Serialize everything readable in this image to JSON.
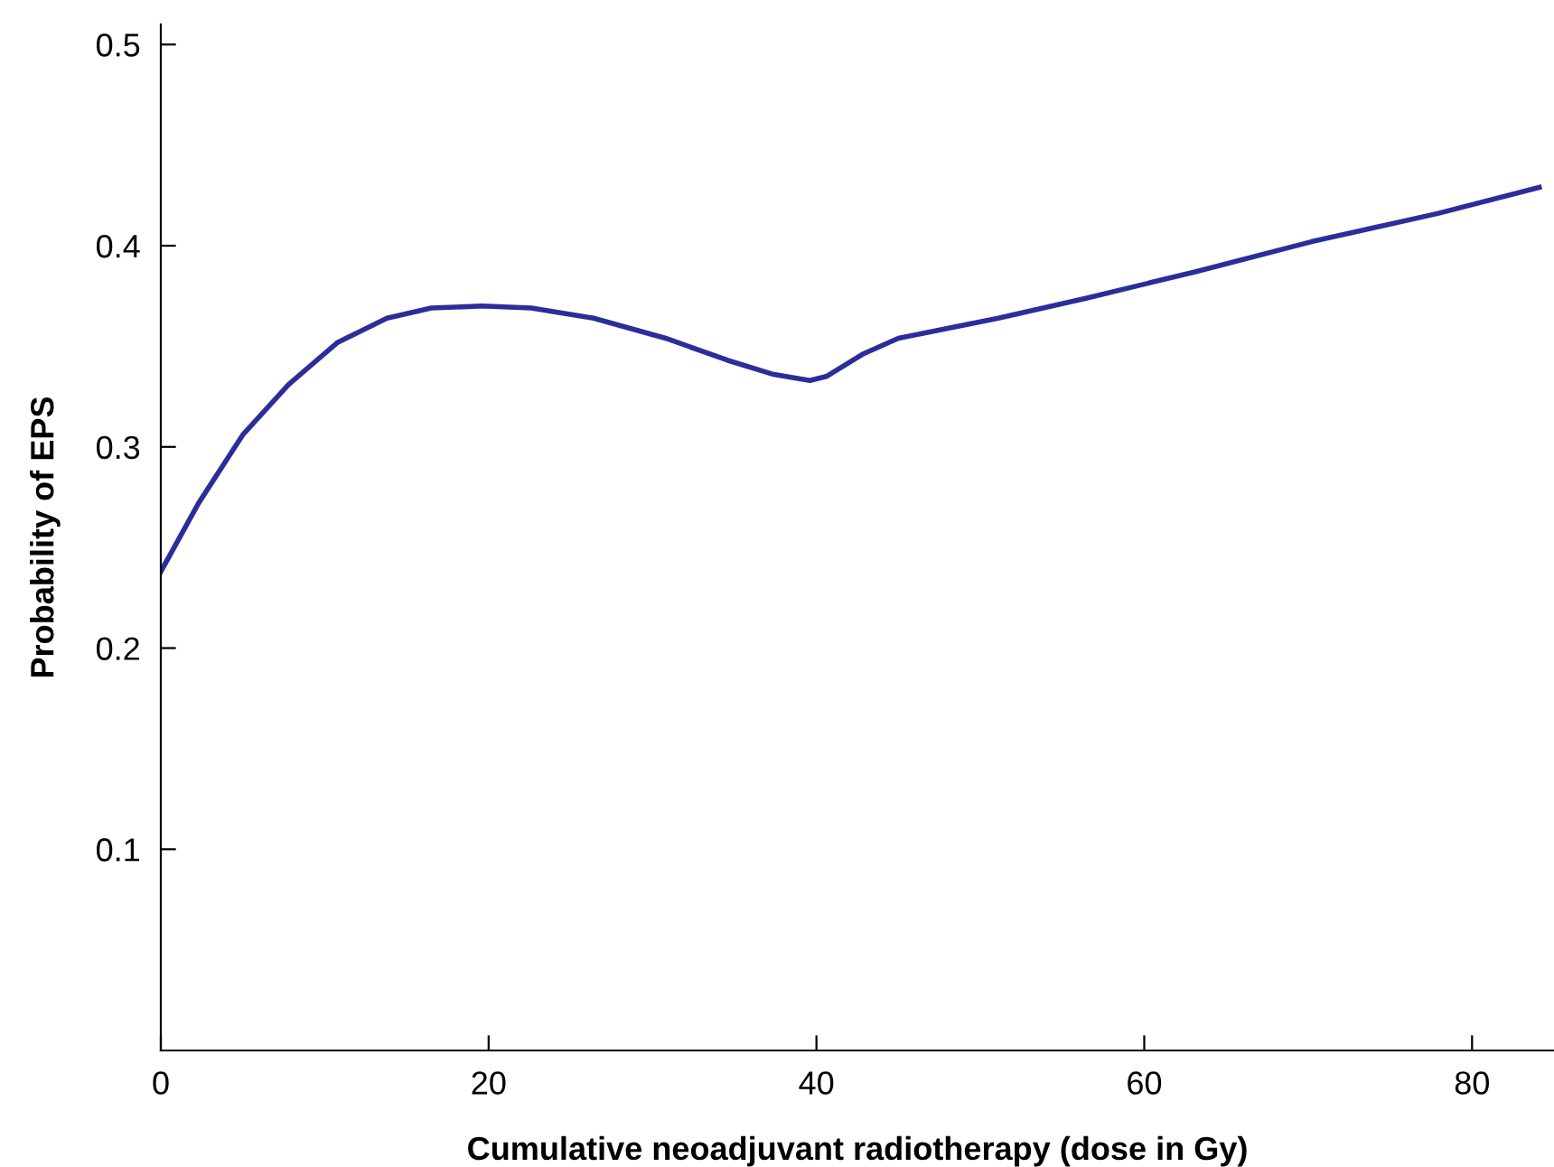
{
  "chart_data": {
    "type": "line",
    "xlabel": "Cumulative neoadjuvant radiotherapy (dose in Gy)",
    "ylabel": "Probability of EPS",
    "xlim": [
      0,
      85
    ],
    "ylim": [
      0,
      0.51
    ],
    "xticks": [
      0,
      20,
      40,
      60,
      80
    ],
    "yticks": [
      0.1,
      0.2,
      0.3,
      0.4,
      0.5
    ],
    "grid": false,
    "legend": false,
    "marker": "none",
    "line_style": "solid",
    "series": [
      {
        "color": "#2b2e9a",
        "x": [
          0,
          2.3,
          5.0,
          7.8,
          10.8,
          13.8,
          16.5,
          19.6,
          22.6,
          26.4,
          30.8,
          34.6,
          37.4,
          39.6,
          40.6,
          42.8,
          45.0,
          51.1,
          56.5,
          63.1,
          70.2,
          77.9,
          84.1
        ],
        "values": [
          0.238,
          0.272,
          0.306,
          0.331,
          0.352,
          0.364,
          0.369,
          0.37,
          0.369,
          0.364,
          0.354,
          0.343,
          0.336,
          0.333,
          0.335,
          0.346,
          0.354,
          0.364,
          0.374,
          0.387,
          0.402,
          0.416,
          0.429
        ]
      }
    ]
  }
}
